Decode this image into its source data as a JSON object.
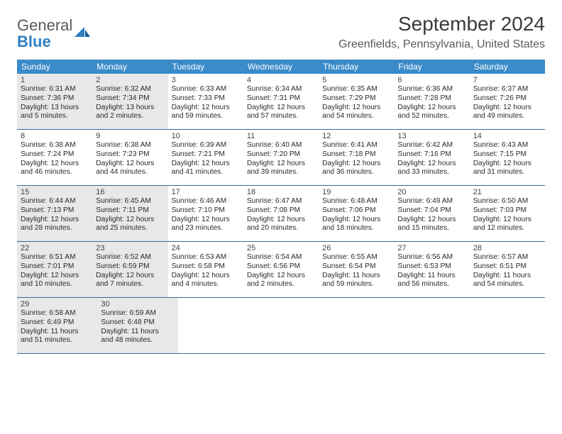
{
  "logo": {
    "general": "General",
    "blue": "Blue"
  },
  "title": "September 2024",
  "location": "Greenfields, Pennsylvania, United States",
  "weekdays": [
    "Sunday",
    "Monday",
    "Tuesday",
    "Wednesday",
    "Thursday",
    "Friday",
    "Saturday"
  ],
  "colors": {
    "header_bg": "#3b8bc9",
    "week_border": "#2d6ea8",
    "dimmed_bg": "#e8e8e8",
    "logo_blue": "#2f7fc1",
    "text": "#2a2a2a"
  },
  "weeks": [
    [
      {
        "n": "1",
        "dim": true,
        "sr": "Sunrise: 6:31 AM",
        "ss": "Sunset: 7:36 PM",
        "d1": "Daylight: 13 hours",
        "d2": "and 5 minutes."
      },
      {
        "n": "2",
        "dim": true,
        "sr": "Sunrise: 6:32 AM",
        "ss": "Sunset: 7:34 PM",
        "d1": "Daylight: 13 hours",
        "d2": "and 2 minutes."
      },
      {
        "n": "3",
        "dim": false,
        "sr": "Sunrise: 6:33 AM",
        "ss": "Sunset: 7:33 PM",
        "d1": "Daylight: 12 hours",
        "d2": "and 59 minutes."
      },
      {
        "n": "4",
        "dim": false,
        "sr": "Sunrise: 6:34 AM",
        "ss": "Sunset: 7:31 PM",
        "d1": "Daylight: 12 hours",
        "d2": "and 57 minutes."
      },
      {
        "n": "5",
        "dim": false,
        "sr": "Sunrise: 6:35 AM",
        "ss": "Sunset: 7:29 PM",
        "d1": "Daylight: 12 hours",
        "d2": "and 54 minutes."
      },
      {
        "n": "6",
        "dim": false,
        "sr": "Sunrise: 6:36 AM",
        "ss": "Sunset: 7:28 PM",
        "d1": "Daylight: 12 hours",
        "d2": "and 52 minutes."
      },
      {
        "n": "7",
        "dim": false,
        "sr": "Sunrise: 6:37 AM",
        "ss": "Sunset: 7:26 PM",
        "d1": "Daylight: 12 hours",
        "d2": "and 49 minutes."
      }
    ],
    [
      {
        "n": "8",
        "dim": false,
        "sr": "Sunrise: 6:38 AM",
        "ss": "Sunset: 7:24 PM",
        "d1": "Daylight: 12 hours",
        "d2": "and 46 minutes."
      },
      {
        "n": "9",
        "dim": false,
        "sr": "Sunrise: 6:38 AM",
        "ss": "Sunset: 7:23 PM",
        "d1": "Daylight: 12 hours",
        "d2": "and 44 minutes."
      },
      {
        "n": "10",
        "dim": false,
        "sr": "Sunrise: 6:39 AM",
        "ss": "Sunset: 7:21 PM",
        "d1": "Daylight: 12 hours",
        "d2": "and 41 minutes."
      },
      {
        "n": "11",
        "dim": false,
        "sr": "Sunrise: 6:40 AM",
        "ss": "Sunset: 7:20 PM",
        "d1": "Daylight: 12 hours",
        "d2": "and 39 minutes."
      },
      {
        "n": "12",
        "dim": false,
        "sr": "Sunrise: 6:41 AM",
        "ss": "Sunset: 7:18 PM",
        "d1": "Daylight: 12 hours",
        "d2": "and 36 minutes."
      },
      {
        "n": "13",
        "dim": false,
        "sr": "Sunrise: 6:42 AM",
        "ss": "Sunset: 7:16 PM",
        "d1": "Daylight: 12 hours",
        "d2": "and 33 minutes."
      },
      {
        "n": "14",
        "dim": false,
        "sr": "Sunrise: 6:43 AM",
        "ss": "Sunset: 7:15 PM",
        "d1": "Daylight: 12 hours",
        "d2": "and 31 minutes."
      }
    ],
    [
      {
        "n": "15",
        "dim": true,
        "sr": "Sunrise: 6:44 AM",
        "ss": "Sunset: 7:13 PM",
        "d1": "Daylight: 12 hours",
        "d2": "and 28 minutes."
      },
      {
        "n": "16",
        "dim": true,
        "sr": "Sunrise: 6:45 AM",
        "ss": "Sunset: 7:11 PM",
        "d1": "Daylight: 12 hours",
        "d2": "and 25 minutes."
      },
      {
        "n": "17",
        "dim": false,
        "sr": "Sunrise: 6:46 AM",
        "ss": "Sunset: 7:10 PM",
        "d1": "Daylight: 12 hours",
        "d2": "and 23 minutes."
      },
      {
        "n": "18",
        "dim": false,
        "sr": "Sunrise: 6:47 AM",
        "ss": "Sunset: 7:08 PM",
        "d1": "Daylight: 12 hours",
        "d2": "and 20 minutes."
      },
      {
        "n": "19",
        "dim": false,
        "sr": "Sunrise: 6:48 AM",
        "ss": "Sunset: 7:06 PM",
        "d1": "Daylight: 12 hours",
        "d2": "and 18 minutes."
      },
      {
        "n": "20",
        "dim": false,
        "sr": "Sunrise: 6:49 AM",
        "ss": "Sunset: 7:04 PM",
        "d1": "Daylight: 12 hours",
        "d2": "and 15 minutes."
      },
      {
        "n": "21",
        "dim": false,
        "sr": "Sunrise: 6:50 AM",
        "ss": "Sunset: 7:03 PM",
        "d1": "Daylight: 12 hours",
        "d2": "and 12 minutes."
      }
    ],
    [
      {
        "n": "22",
        "dim": true,
        "sr": "Sunrise: 6:51 AM",
        "ss": "Sunset: 7:01 PM",
        "d1": "Daylight: 12 hours",
        "d2": "and 10 minutes."
      },
      {
        "n": "23",
        "dim": true,
        "sr": "Sunrise: 6:52 AM",
        "ss": "Sunset: 6:59 PM",
        "d1": "Daylight: 12 hours",
        "d2": "and 7 minutes."
      },
      {
        "n": "24",
        "dim": false,
        "sr": "Sunrise: 6:53 AM",
        "ss": "Sunset: 6:58 PM",
        "d1": "Daylight: 12 hours",
        "d2": "and 4 minutes."
      },
      {
        "n": "25",
        "dim": false,
        "sr": "Sunrise: 6:54 AM",
        "ss": "Sunset: 6:56 PM",
        "d1": "Daylight: 12 hours",
        "d2": "and 2 minutes."
      },
      {
        "n": "26",
        "dim": false,
        "sr": "Sunrise: 6:55 AM",
        "ss": "Sunset: 6:54 PM",
        "d1": "Daylight: 11 hours",
        "d2": "and 59 minutes."
      },
      {
        "n": "27",
        "dim": false,
        "sr": "Sunrise: 6:56 AM",
        "ss": "Sunset: 6:53 PM",
        "d1": "Daylight: 11 hours",
        "d2": "and 56 minutes."
      },
      {
        "n": "28",
        "dim": false,
        "sr": "Sunrise: 6:57 AM",
        "ss": "Sunset: 6:51 PM",
        "d1": "Daylight: 11 hours",
        "d2": "and 54 minutes."
      }
    ],
    [
      {
        "n": "29",
        "dim": true,
        "sr": "Sunrise: 6:58 AM",
        "ss": "Sunset: 6:49 PM",
        "d1": "Daylight: 11 hours",
        "d2": "and 51 minutes."
      },
      {
        "n": "30",
        "dim": true,
        "sr": "Sunrise: 6:59 AM",
        "ss": "Sunset: 6:48 PM",
        "d1": "Daylight: 11 hours",
        "d2": "and 48 minutes."
      },
      null,
      null,
      null,
      null,
      null
    ]
  ]
}
